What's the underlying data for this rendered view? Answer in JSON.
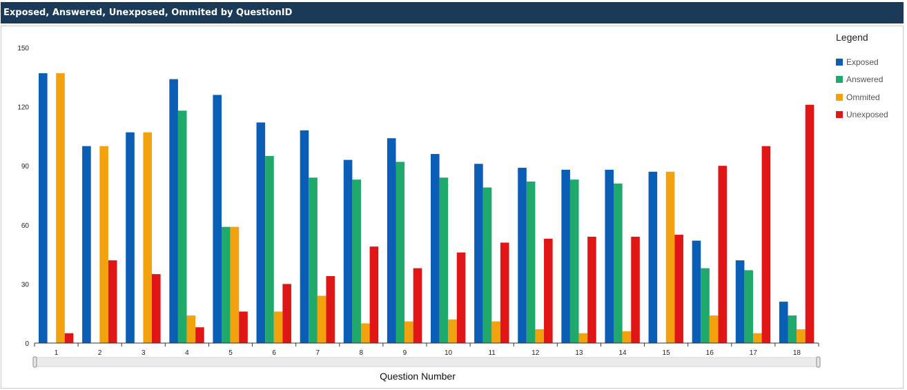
{
  "header": {
    "title": "Exposed, Answered, Unexposed, Ommited by QuestionID"
  },
  "legend": {
    "title": "Legend"
  },
  "chart_data": {
    "type": "bar",
    "title": "Exposed, Answered, Unexposed, Ommited by QuestionID",
    "xlabel": "Question Number",
    "ylabel": "",
    "ylim": [
      0,
      150
    ],
    "yticks": [
      0,
      30,
      60,
      90,
      120,
      150
    ],
    "grid": false,
    "legend_position": "right",
    "categories": [
      "1",
      "2",
      "3",
      "4",
      "5",
      "6",
      "7",
      "8",
      "9",
      "10",
      "11",
      "12",
      "13",
      "14",
      "15",
      "16",
      "17",
      "18"
    ],
    "series": [
      {
        "name": "Exposed",
        "color": "#0a5eb5",
        "values": [
          137,
          100,
          107,
          134,
          126,
          112,
          108,
          93,
          104,
          96,
          91,
          89,
          88,
          88,
          87,
          52,
          42,
          21
        ]
      },
      {
        "name": "Answered",
        "color": "#1faa6b",
        "values": [
          0,
          0,
          0,
          118,
          59,
          95,
          84,
          83,
          92,
          84,
          79,
          82,
          83,
          81,
          0,
          38,
          37,
          14
        ]
      },
      {
        "name": "Ommited",
        "color": "#f2a20c",
        "values": [
          137,
          100,
          107,
          14,
          59,
          16,
          24,
          10,
          11,
          12,
          11,
          7,
          5,
          6,
          87,
          14,
          5,
          7
        ]
      },
      {
        "name": "Unexposed",
        "color": "#e01616",
        "values": [
          5,
          42,
          35,
          8,
          16,
          30,
          34,
          49,
          38,
          46,
          51,
          53,
          54,
          54,
          55,
          90,
          100,
          121
        ]
      }
    ]
  }
}
